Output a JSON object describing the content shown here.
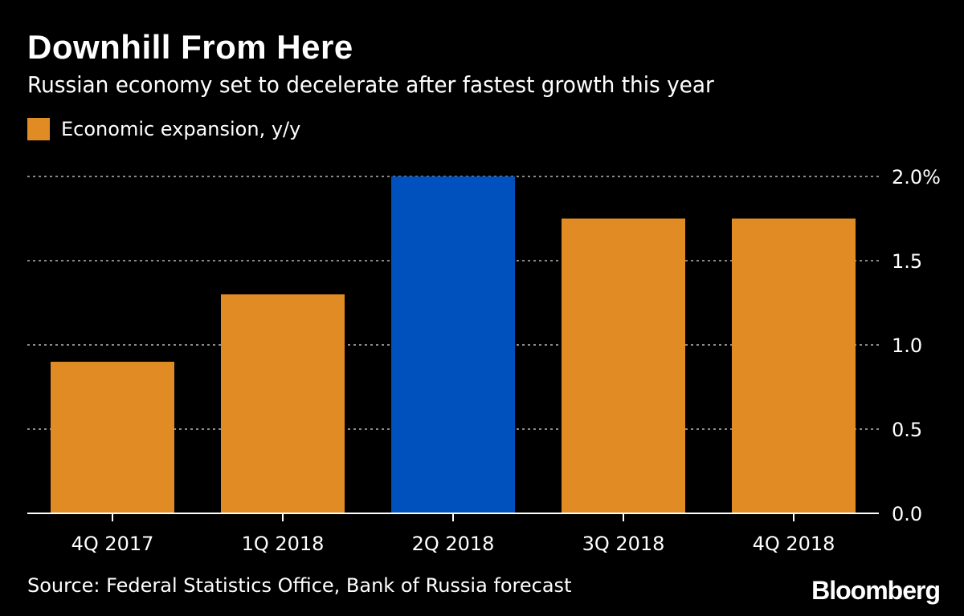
{
  "header": {
    "title": "Downhill From Here",
    "subtitle": "Russian economy set to decelerate after fastest growth this year"
  },
  "legend": {
    "label": "Economic expansion, y/y",
    "color": "#e08b24"
  },
  "footer": {
    "source": "Source: Federal Statistics Office, Bank of Russia forecast",
    "brand": "Bloomberg"
  },
  "colors": {
    "background": "#000000",
    "bar": "#e08b24",
    "highlight": "#0051bd",
    "grid": "#8a8a8a",
    "text": "#ffffff"
  },
  "chart_data": {
    "type": "bar",
    "categories": [
      "4Q 2017",
      "1Q 2018",
      "2Q 2018",
      "3Q 2018",
      "4Q 2018"
    ],
    "series": [
      {
        "name": "Economic expansion, y/y",
        "values": [
          0.9,
          1.3,
          2.0,
          1.75,
          1.75
        ]
      }
    ],
    "highlight_index": 2,
    "ylim": [
      0,
      2.0
    ],
    "yticks": [
      0,
      0.5,
      1.0,
      1.5,
      2.0
    ],
    "ytick_labels": [
      "0.0",
      "0.5",
      "1.0",
      "1.5",
      "2.0%"
    ],
    "y_axis_position": "right",
    "grid": true,
    "legend_position": "top-left"
  }
}
